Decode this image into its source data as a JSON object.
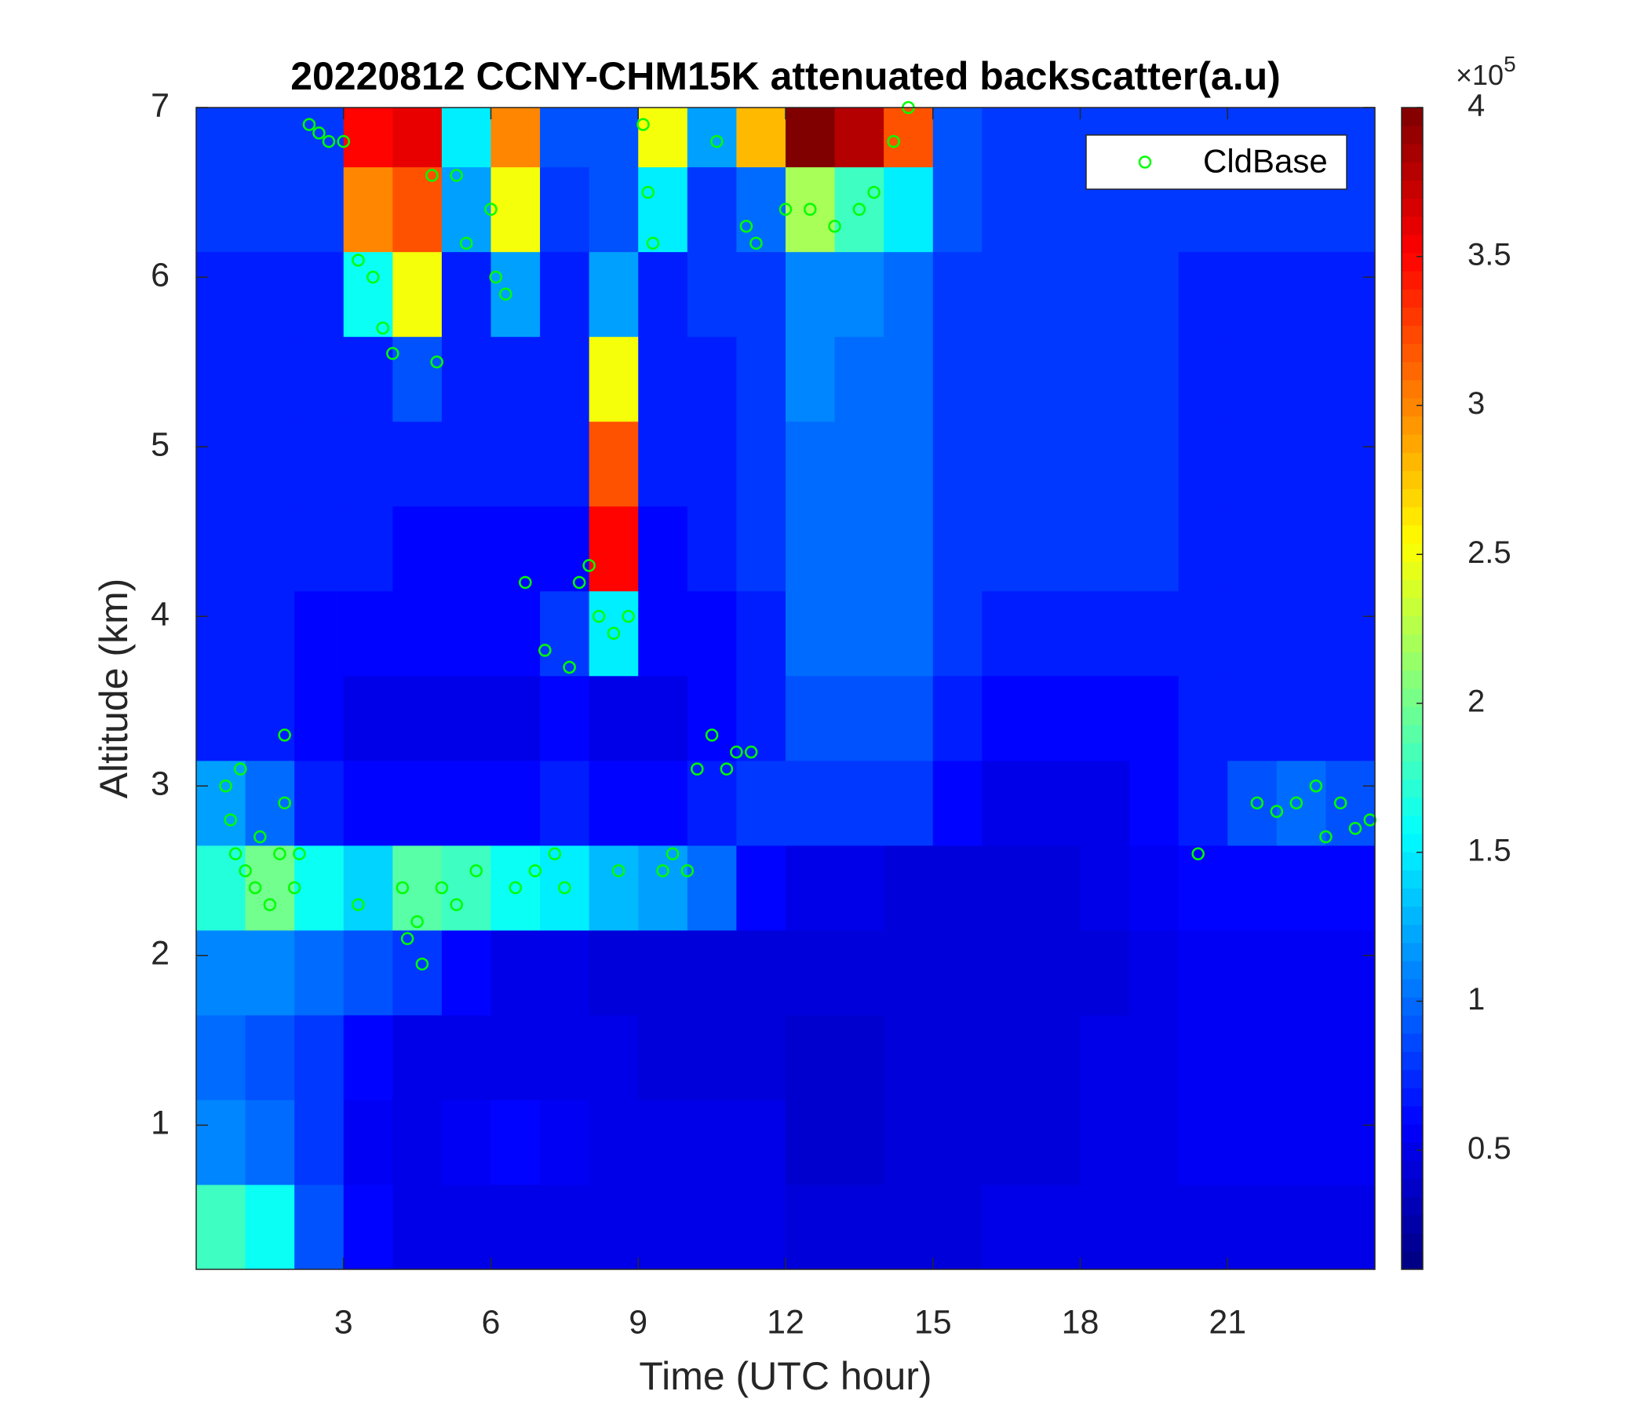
{
  "chart_data": {
    "type": "heatmap",
    "title": "20220812 CCNY-CHM15K attenuated backscatter(a.u)",
    "xlabel": "Time (UTC hour)",
    "ylabel": "Altitude (km)",
    "x": [
      0.5,
      1.5,
      2.5,
      3.5,
      4.5,
      5.5,
      6.5,
      7.5,
      8.5,
      9.5,
      10.5,
      11.5,
      12.5,
      13.5,
      14.5,
      15.5,
      16.5,
      17.5,
      18.5,
      19.5,
      20.5,
      21.5,
      22.5,
      23.5
    ],
    "y": [
      0.4,
      0.9,
      1.4,
      1.9,
      2.4,
      2.9,
      3.4,
      3.9,
      4.4,
      4.9,
      5.4,
      5.9,
      6.4,
      6.9
    ],
    "z": [
      [
        1.8,
        1.6,
        0.9,
        0.6,
        0.5,
        0.5,
        0.5,
        0.5,
        0.5,
        0.5,
        0.5,
        0.5,
        0.45,
        0.45,
        0.45,
        0.45,
        0.5,
        0.5,
        0.5,
        0.5,
        0.5,
        0.5,
        0.5,
        0.5
      ],
      [
        1.1,
        1.0,
        0.8,
        0.55,
        0.5,
        0.55,
        0.6,
        0.55,
        0.5,
        0.5,
        0.5,
        0.5,
        0.4,
        0.4,
        0.45,
        0.45,
        0.45,
        0.45,
        0.5,
        0.5,
        0.55,
        0.55,
        0.55,
        0.55
      ],
      [
        1.0,
        0.9,
        0.8,
        0.6,
        0.5,
        0.5,
        0.5,
        0.5,
        0.5,
        0.45,
        0.45,
        0.45,
        0.4,
        0.4,
        0.45,
        0.45,
        0.45,
        0.45,
        0.5,
        0.5,
        0.55,
        0.55,
        0.55,
        0.55
      ],
      [
        1.1,
        1.1,
        1.0,
        0.9,
        0.8,
        0.6,
        0.5,
        0.5,
        0.45,
        0.45,
        0.45,
        0.45,
        0.45,
        0.45,
        0.45,
        0.45,
        0.45,
        0.45,
        0.45,
        0.5,
        0.55,
        0.55,
        0.55,
        0.55
      ],
      [
        1.7,
        2.0,
        1.6,
        1.4,
        1.9,
        1.8,
        1.6,
        1.5,
        1.3,
        1.2,
        1.0,
        0.6,
        0.5,
        0.5,
        0.45,
        0.45,
        0.45,
        0.45,
        0.5,
        0.55,
        0.6,
        0.6,
        0.6,
        0.6
      ],
      [
        1.2,
        1.0,
        0.7,
        0.6,
        0.6,
        0.6,
        0.6,
        0.7,
        0.6,
        0.6,
        0.7,
        0.8,
        0.8,
        0.8,
        0.8,
        0.6,
        0.5,
        0.5,
        0.5,
        0.6,
        0.7,
        0.9,
        1.0,
        0.9
      ],
      [
        0.7,
        0.7,
        0.6,
        0.5,
        0.5,
        0.5,
        0.5,
        0.6,
        0.5,
        0.5,
        0.6,
        0.7,
        0.9,
        0.9,
        0.9,
        0.7,
        0.6,
        0.6,
        0.6,
        0.6,
        0.7,
        0.7,
        0.7,
        0.7
      ],
      [
        0.7,
        0.7,
        0.6,
        0.6,
        0.6,
        0.6,
        0.6,
        0.8,
        1.5,
        0.6,
        0.6,
        0.7,
        1.0,
        1.0,
        1.0,
        0.8,
        0.7,
        0.7,
        0.7,
        0.7,
        0.7,
        0.7,
        0.7,
        0.7
      ],
      [
        0.7,
        0.7,
        0.7,
        0.7,
        0.6,
        0.6,
        0.6,
        0.6,
        3.5,
        0.6,
        0.7,
        0.8,
        1.0,
        1.0,
        1.0,
        0.8,
        0.8,
        0.8,
        0.8,
        0.8,
        0.7,
        0.7,
        0.7,
        0.7
      ],
      [
        0.7,
        0.7,
        0.7,
        0.7,
        0.7,
        0.7,
        0.7,
        0.7,
        3.2,
        0.7,
        0.7,
        0.8,
        1.0,
        1.0,
        1.0,
        0.8,
        0.8,
        0.8,
        0.8,
        0.8,
        0.7,
        0.7,
        0.7,
        0.7
      ],
      [
        0.7,
        0.7,
        0.7,
        0.7,
        0.9,
        0.7,
        0.7,
        0.7,
        2.5,
        0.7,
        0.7,
        0.8,
        1.1,
        1.0,
        1.0,
        0.8,
        0.8,
        0.8,
        0.8,
        0.8,
        0.7,
        0.7,
        0.7,
        0.7
      ],
      [
        0.7,
        0.7,
        0.7,
        1.6,
        2.5,
        0.7,
        1.2,
        0.7,
        1.2,
        0.7,
        0.8,
        0.8,
        1.1,
        1.1,
        1.0,
        0.8,
        0.8,
        0.8,
        0.8,
        0.8,
        0.7,
        0.7,
        0.7,
        0.7
      ],
      [
        0.8,
        0.8,
        0.8,
        3.0,
        3.2,
        1.2,
        2.5,
        0.8,
        0.9,
        1.5,
        0.8,
        1.0,
        2.2,
        1.8,
        1.5,
        0.9,
        0.8,
        0.8,
        0.8,
        0.8,
        0.8,
        0.8,
        0.8,
        0.8
      ],
      [
        0.8,
        0.8,
        0.8,
        3.5,
        3.6,
        1.5,
        3.0,
        0.9,
        0.9,
        2.5,
        1.2,
        2.8,
        4.0,
        3.8,
        3.2,
        0.9,
        0.8,
        0.8,
        0.8,
        0.8,
        0.8,
        0.8,
        0.8,
        0.8
      ]
    ],
    "xlim": [
      0,
      24
    ],
    "ylim": [
      0.15,
      7
    ],
    "xticks": [
      3,
      6,
      9,
      12,
      15,
      18,
      21
    ],
    "yticks": [
      1,
      2,
      3,
      4,
      5,
      6,
      7
    ],
    "colormap": "jet",
    "clim": [
      0.1,
      4
    ],
    "cticks": [
      0.5,
      1,
      1.5,
      2,
      2.5,
      3,
      3.5,
      4
    ],
    "colorbar_multiplier": "×10",
    "colorbar_exponent": "5",
    "legend": "upper right",
    "series": [
      {
        "name": "CldBase",
        "color": "#00ff00",
        "x": [
          0.6,
          0.7,
          0.8,
          0.9,
          1.0,
          1.2,
          1.3,
          1.5,
          1.7,
          1.8,
          1.8,
          2.0,
          2.1,
          2.3,
          2.5,
          2.7,
          3.0,
          3.3,
          3.3,
          3.6,
          3.8,
          4.0,
          4.2,
          4.3,
          4.5,
          4.6,
          4.8,
          4.9,
          5.0,
          5.3,
          5.3,
          5.5,
          5.7,
          6.0,
          6.1,
          6.3,
          6.5,
          6.7,
          6.9,
          7.1,
          7.3,
          7.5,
          7.6,
          7.8,
          8.0,
          8.2,
          8.5,
          8.6,
          8.8,
          9.1,
          9.2,
          9.3,
          9.5,
          9.7,
          10.0,
          10.2,
          10.5,
          10.6,
          10.8,
          11.0,
          11.3,
          11.2,
          11.4,
          12.0,
          12.5,
          13.0,
          13.5,
          13.8,
          14.2,
          14.5,
          20.4,
          21.6,
          22.0,
          22.4,
          22.8,
          23.0,
          23.3,
          23.6,
          23.9
        ],
        "y": [
          3.0,
          2.8,
          2.6,
          3.1,
          2.5,
          2.4,
          2.7,
          2.3,
          2.6,
          2.9,
          3.3,
          2.4,
          2.6,
          6.9,
          6.85,
          6.8,
          6.8,
          2.3,
          6.1,
          6.0,
          5.7,
          5.55,
          2.4,
          2.1,
          2.2,
          1.95,
          6.6,
          5.5,
          2.4,
          6.6,
          2.3,
          6.2,
          2.5,
          6.4,
          6.0,
          5.9,
          2.4,
          4.2,
          2.5,
          3.8,
          2.6,
          2.4,
          3.7,
          4.2,
          4.3,
          4.0,
          3.9,
          2.5,
          4.0,
          6.9,
          6.5,
          6.2,
          2.5,
          2.6,
          2.5,
          3.1,
          3.3,
          6.8,
          3.1,
          3.2,
          3.2,
          6.3,
          6.2,
          6.4,
          6.4,
          6.3,
          6.4,
          6.5,
          6.8,
          7.0,
          2.6,
          2.9,
          2.85,
          2.9,
          3.0,
          2.7,
          2.9,
          2.75,
          2.8
        ]
      }
    ]
  }
}
